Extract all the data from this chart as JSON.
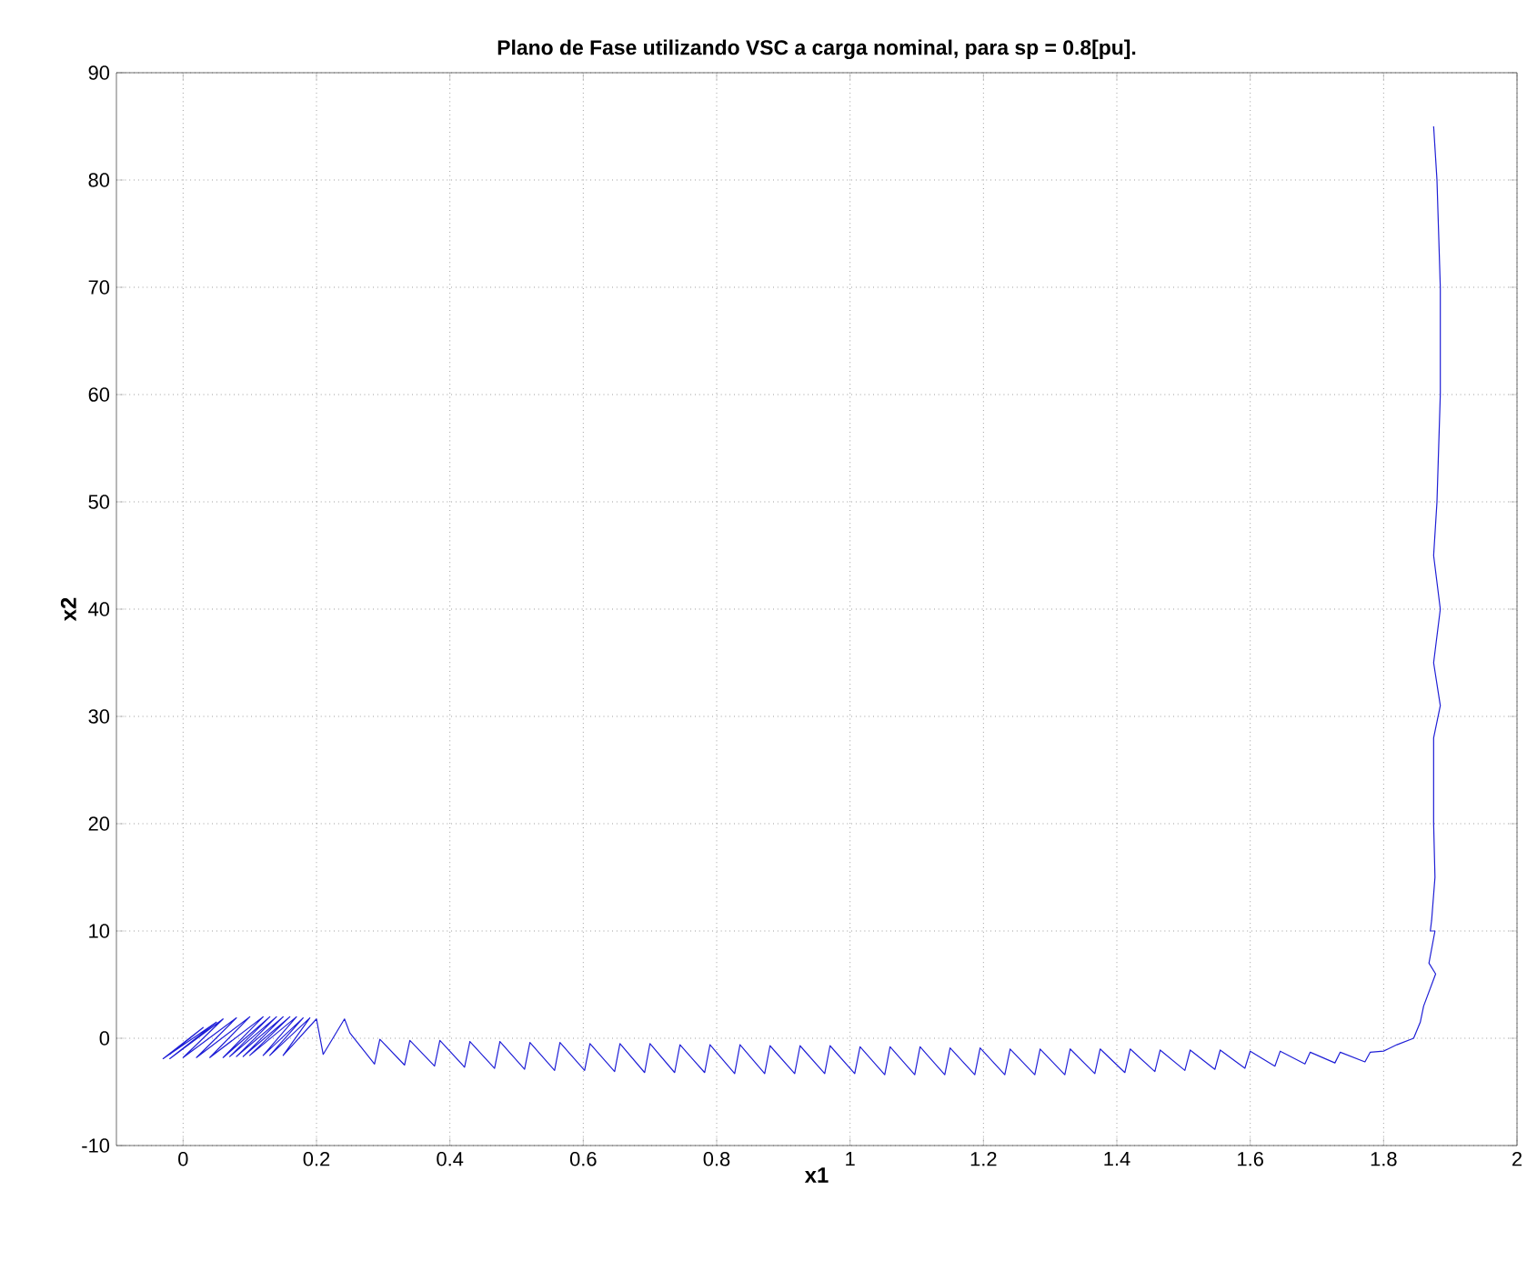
{
  "chart_data": {
    "type": "line",
    "title": "Plano de Fase utilizando VSC a carga nominal, para sp = 0.8[pu].",
    "xlabel": "x1",
    "ylabel": "x2",
    "xlim": [
      -0.1,
      2
    ],
    "ylim": [
      -10,
      90
    ],
    "xticks": [
      0,
      0.2,
      0.4,
      0.6,
      0.8,
      1,
      1.2,
      1.4,
      1.6,
      1.8,
      2
    ],
    "yticks": [
      -10,
      0,
      10,
      20,
      30,
      40,
      50,
      60,
      70,
      80,
      90
    ],
    "grid": true,
    "line_style": "solid",
    "series": [
      {
        "color": "#1f1fd6",
        "x": [
          1.875,
          1.88,
          1.885,
          1.885,
          1.88,
          1.875,
          1.885,
          1.875,
          1.885,
          1.875,
          1.875,
          1.877,
          1.872,
          1.87,
          1.877,
          1.868,
          1.878,
          1.86,
          1.855,
          1.845,
          1.82,
          1.8,
          1.78,
          1.772,
          1.735,
          1.727,
          1.69,
          1.682,
          1.645,
          1.637,
          1.6,
          1.592,
          1.555,
          1.547,
          1.51,
          1.502,
          1.465,
          1.457,
          1.42,
          1.412,
          1.375,
          1.367,
          1.33,
          1.322,
          1.285,
          1.277,
          1.24,
          1.232,
          1.195,
          1.187,
          1.15,
          1.142,
          1.105,
          1.097,
          1.06,
          1.052,
          1.015,
          1.007,
          0.97,
          0.962,
          0.925,
          0.917,
          0.88,
          0.872,
          0.835,
          0.827,
          0.79,
          0.782,
          0.745,
          0.737,
          0.7,
          0.692,
          0.655,
          0.647,
          0.61,
          0.602,
          0.565,
          0.557,
          0.52,
          0.512,
          0.475,
          0.467,
          0.43,
          0.422,
          0.385,
          0.377,
          0.34,
          0.332,
          0.295,
          0.287,
          0.25,
          0.242,
          0.21,
          0.2,
          0.15,
          0.19,
          0.13,
          0.18,
          0.12,
          0.17,
          0.1,
          0.16,
          0.09,
          0.15,
          0.08,
          0.14,
          0.07,
          0.13,
          0.06,
          0.12,
          0.04,
          0.1,
          0.02,
          0.08,
          0.0,
          0.06,
          -0.02,
          0.05,
          -0.03,
          0.03,
          -0.02,
          0.02
        ],
        "values": [
          85,
          80,
          70,
          60,
          50,
          45,
          40,
          35,
          31,
          28,
          20,
          15,
          11,
          10,
          10,
          7,
          6,
          3,
          1.5,
          0,
          -0.6,
          -1.2,
          -1.3,
          -2.2,
          -1.3,
          -2.3,
          -1.3,
          -2.4,
          -1.2,
          -2.6,
          -1.2,
          -2.8,
          -1.1,
          -2.9,
          -1.1,
          -3.0,
          -1.1,
          -3.1,
          -1.0,
          -3.2,
          -1.0,
          -3.3,
          -1.0,
          -3.4,
          -1.0,
          -3.4,
          -1.0,
          -3.4,
          -0.9,
          -3.4,
          -0.9,
          -3.4,
          -0.8,
          -3.4,
          -0.8,
          -3.4,
          -0.8,
          -3.3,
          -0.7,
          -3.3,
          -0.7,
          -3.3,
          -0.7,
          -3.3,
          -0.6,
          -3.3,
          -0.6,
          -3.2,
          -0.6,
          -3.2,
          -0.5,
          -3.2,
          -0.5,
          -3.1,
          -0.5,
          -3.0,
          -0.4,
          -3.0,
          -0.4,
          -2.9,
          -0.3,
          -2.8,
          -0.3,
          -2.7,
          -0.2,
          -2.6,
          -0.2,
          -2.5,
          -0.1,
          -2.4,
          0.5,
          1.8,
          -1.5,
          1.8,
          -1.6,
          1.9,
          -1.6,
          1.9,
          -1.6,
          2.0,
          -1.6,
          2.0,
          -1.7,
          2.0,
          -1.7,
          2.0,
          -1.7,
          2.0,
          -1.8,
          2.0,
          -1.8,
          2.0,
          -1.8,
          1.9,
          -1.8,
          1.8,
          -1.9,
          1.5,
          -1.9,
          1.0,
          -1.5,
          0.5
        ]
      }
    ]
  }
}
